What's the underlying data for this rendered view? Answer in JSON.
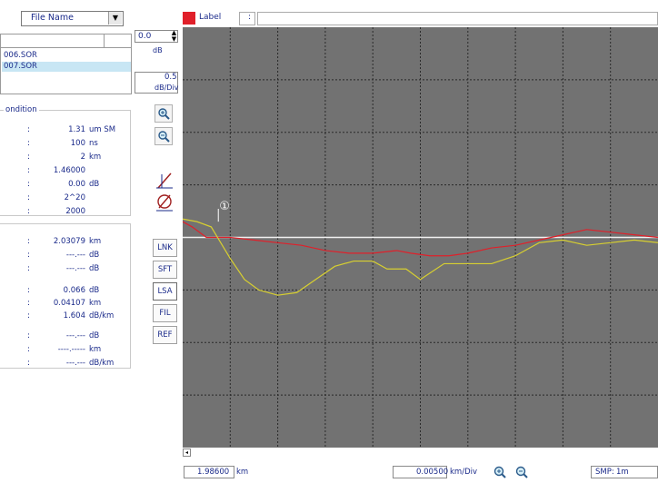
{
  "file_panel": {
    "combo_label": "File Name",
    "combo_arrow": "▼",
    "files": [
      "006.SOR",
      "007.SOR"
    ],
    "selected_index": 1
  },
  "condition": {
    "title": "ondition",
    "rows": [
      {
        "value": "1.31",
        "unit": "um SM"
      },
      {
        "value": "100",
        "unit": "ns"
      },
      {
        "value": "2",
        "unit": "km"
      },
      {
        "value": "1.46000",
        "unit": ""
      },
      {
        "value": "0.00",
        "unit": "dB"
      },
      {
        "value": "2^20",
        "unit": ""
      },
      {
        "value": "2000",
        "unit": ""
      }
    ]
  },
  "results1": {
    "rows": [
      {
        "value": "2.03079",
        "unit": "km"
      },
      {
        "value": "---.---",
        "unit": "dB"
      },
      {
        "value": "---.---",
        "unit": "dB"
      }
    ]
  },
  "results2": {
    "rows": [
      {
        "value": "0.066",
        "unit": "dB"
      },
      {
        "value": "0.04107",
        "unit": "km"
      },
      {
        "value": "1.604",
        "unit": "dB/km"
      }
    ]
  },
  "results3": {
    "rows": [
      {
        "value": "---.---",
        "unit": "dB"
      },
      {
        "value": "----.-----",
        "unit": "km"
      },
      {
        "value": "---.---",
        "unit": "dB/km"
      }
    ]
  },
  "vertical": {
    "offset_value": "0.0",
    "offset_unit": "dB",
    "scale_value": "0.5",
    "scale_unit": "dB/Div"
  },
  "side_buttons": [
    "LNK",
    "SFT",
    "LSA",
    "FIL",
    "REF"
  ],
  "active_side_button": "LSA",
  "label_bar": {
    "label": "Label",
    "colon": ":",
    "value": ""
  },
  "marker": {
    "label": "①"
  },
  "bottom": {
    "position_value": "1.98600",
    "position_unit": "km",
    "hscale_value": "0.00500",
    "hscale_unit": "km/Div",
    "smp_label": "SMP:",
    "smp_value": "1m"
  },
  "colors": {
    "plot_bg": "#727272",
    "trace_red": "#e0202a",
    "trace_yellow": "#d8d030",
    "cursor_line": "#f0f0f0",
    "text": "#1a2a8a"
  },
  "chart_data": {
    "type": "line",
    "ylim": [
      -4,
      4
    ],
    "xlim": [
      0,
      10
    ],
    "grid": true,
    "series": [
      {
        "color": "#e0202a",
        "points": [
          [
            0,
            0.3
          ],
          [
            0.2,
            0.2
          ],
          [
            0.5,
            0.0
          ],
          [
            1.0,
            0.0
          ],
          [
            1.5,
            -0.05
          ],
          [
            2,
            -0.1
          ],
          [
            2.5,
            -0.15
          ],
          [
            3,
            -0.25
          ],
          [
            3.5,
            -0.3
          ],
          [
            4,
            -0.3
          ],
          [
            4.5,
            -0.25
          ],
          [
            4.8,
            -0.3
          ],
          [
            5.2,
            -0.35
          ],
          [
            5.6,
            -0.35
          ],
          [
            6,
            -0.3
          ],
          [
            6.5,
            -0.2
          ],
          [
            7,
            -0.15
          ],
          [
            7.5,
            -0.05
          ],
          [
            8,
            0.05
          ],
          [
            8.5,
            0.15
          ],
          [
            9,
            0.1
          ],
          [
            9.5,
            0.05
          ],
          [
            10,
            0.0
          ]
        ]
      },
      {
        "color": "#d8d030",
        "points": [
          [
            0,
            0.35
          ],
          [
            0.3,
            0.3
          ],
          [
            0.6,
            0.2
          ],
          [
            1.0,
            -0.4
          ],
          [
            1.3,
            -0.8
          ],
          [
            1.6,
            -1.0
          ],
          [
            2.0,
            -1.1
          ],
          [
            2.4,
            -1.05
          ],
          [
            2.8,
            -0.8
          ],
          [
            3.2,
            -0.55
          ],
          [
            3.6,
            -0.45
          ],
          [
            4.0,
            -0.45
          ],
          [
            4.3,
            -0.6
          ],
          [
            4.7,
            -0.6
          ],
          [
            5.0,
            -0.8
          ],
          [
            5.5,
            -0.5
          ],
          [
            6,
            -0.5
          ],
          [
            6.5,
            -0.5
          ],
          [
            7,
            -0.35
          ],
          [
            7.5,
            -0.1
          ],
          [
            8,
            -0.05
          ],
          [
            8.5,
            -0.15
          ],
          [
            9,
            -0.1
          ],
          [
            9.5,
            -0.05
          ],
          [
            10,
            -0.1
          ]
        ]
      }
    ],
    "cursor_x": 0.75,
    "marker_x": 0.75
  }
}
